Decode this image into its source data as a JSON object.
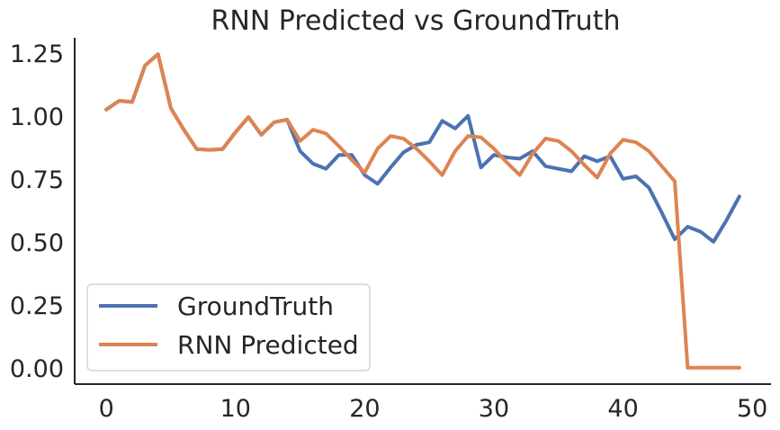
{
  "chart_data": {
    "type": "line",
    "title": "RNN Predicted vs GroundTruth",
    "xlabel": "",
    "ylabel": "",
    "xlim": [
      -2.45,
      51.45
    ],
    "ylim": [
      -0.065,
      1.31
    ],
    "xticks": [
      0,
      10,
      20,
      30,
      40,
      50
    ],
    "xtick_labels": [
      "0",
      "10",
      "20",
      "30",
      "40",
      "50"
    ],
    "yticks": [
      0.0,
      0.25,
      0.5,
      0.75,
      1.0,
      1.25
    ],
    "ytick_labels": [
      "0.00",
      "0.25",
      "0.50",
      "0.75",
      "1.00",
      "1.25"
    ],
    "grid": false,
    "legend_position": "lower-left",
    "x": [
      0,
      1,
      2,
      3,
      4,
      5,
      6,
      7,
      8,
      9,
      10,
      11,
      12,
      13,
      14,
      15,
      16,
      17,
      18,
      19,
      20,
      21,
      22,
      23,
      24,
      25,
      26,
      27,
      28,
      29,
      30,
      31,
      32,
      33,
      34,
      35,
      36,
      37,
      38,
      39,
      40,
      41,
      42,
      43,
      44,
      45,
      46,
      47,
      48,
      49
    ],
    "series": [
      {
        "name": "GroundTruth",
        "color": "#4c72b0",
        "values": [
          1.025,
          1.06,
          1.055,
          1.2,
          1.245,
          1.03,
          0.945,
          0.868,
          0.865,
          0.868,
          0.935,
          0.995,
          0.925,
          0.975,
          0.985,
          0.86,
          0.81,
          0.79,
          0.845,
          0.845,
          0.765,
          0.73,
          0.795,
          0.855,
          0.885,
          0.895,
          0.98,
          0.95,
          1.0,
          0.795,
          0.845,
          0.835,
          0.83,
          0.86,
          0.8,
          0.79,
          0.78,
          0.84,
          0.82,
          0.84,
          0.75,
          0.76,
          0.715,
          0.615,
          0.51,
          0.56,
          0.54,
          0.5,
          0.585,
          0.68
        ]
      },
      {
        "name": "RNN Predicted",
        "color": "#dd8452",
        "values": [
          1.025,
          1.06,
          1.055,
          1.2,
          1.245,
          1.03,
          0.945,
          0.868,
          0.865,
          0.868,
          0.935,
          0.995,
          0.925,
          0.975,
          0.985,
          0.9,
          0.945,
          0.93,
          0.88,
          0.825,
          0.775,
          0.87,
          0.92,
          0.91,
          0.87,
          0.82,
          0.765,
          0.86,
          0.92,
          0.915,
          0.87,
          0.815,
          0.765,
          0.85,
          0.91,
          0.9,
          0.86,
          0.805,
          0.755,
          0.85,
          0.905,
          0.895,
          0.86,
          0.8,
          0.74,
          0.0,
          0.0,
          0.0,
          0.0,
          0.0
        ]
      }
    ]
  }
}
